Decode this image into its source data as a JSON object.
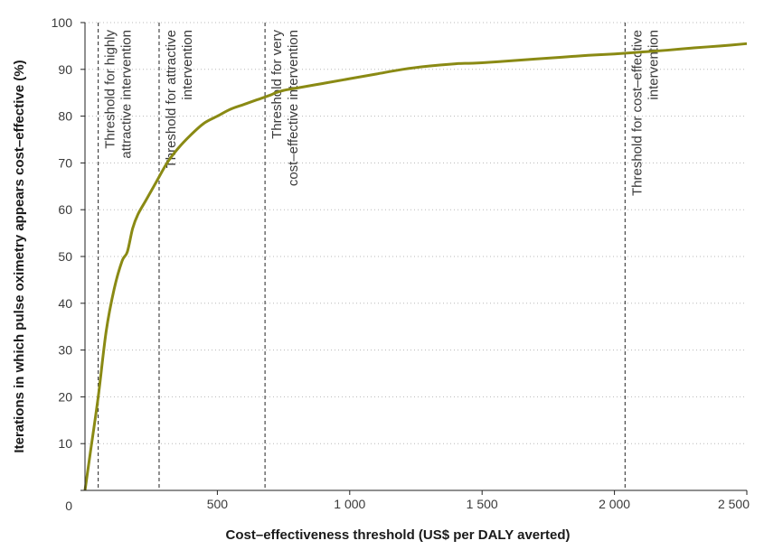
{
  "chart_data": {
    "type": "line",
    "title": "",
    "xlabel": "Cost–effectiveness threshold (US$ per DALY averted)",
    "ylabel": "Iterations in which pulse oximetry appears cost–effective (%)",
    "xlim": [
      0,
      2500
    ],
    "ylim": [
      0,
      100
    ],
    "x_ticks": [
      500,
      1000,
      1500,
      2000,
      2500
    ],
    "x_tick_labels": [
      "500",
      "1 000",
      "1 500",
      "2 000",
      "2 500"
    ],
    "y_ticks": [
      0,
      10,
      20,
      30,
      40,
      50,
      60,
      70,
      80,
      90,
      100
    ],
    "y_tick_labels": [
      "0",
      "10",
      "20",
      "30",
      "40",
      "50",
      "60",
      "70",
      "80",
      "90",
      "100"
    ],
    "grid": "horizontal dotted",
    "line_color": "#8a8a14",
    "series": [
      {
        "x": [
          0,
          20,
          50,
          80,
          110,
          140,
          160,
          180,
          200,
          230,
          270,
          310,
          350,
          400,
          450,
          500,
          550,
          600,
          650,
          700,
          720,
          750,
          800,
          900,
          1000,
          1100,
          1200,
          1300,
          1400,
          1450,
          1500,
          1600,
          1700,
          1800,
          1900,
          2000,
          2100,
          2200,
          2300,
          2400,
          2500
        ],
        "y": [
          0,
          8,
          20,
          34,
          43,
          49,
          51,
          56,
          59,
          62,
          66,
          70,
          73,
          76,
          78.5,
          80,
          81.5,
          82.5,
          83.5,
          84.5,
          85,
          85.5,
          86,
          87,
          88,
          89,
          90,
          90.7,
          91.2,
          91.3,
          91.4,
          91.8,
          92.2,
          92.6,
          93,
          93.3,
          93.7,
          94.1,
          94.6,
          95,
          95.5
        ]
      }
    ],
    "thresholds": [
      {
        "x": 50,
        "lines": [
          "Threshold for highly",
          "attractive intervention"
        ]
      },
      {
        "x": 280,
        "lines": [
          "Threshold for attractive",
          "intervention"
        ]
      },
      {
        "x": 680,
        "lines": [
          "Threshold for very",
          "cost–effective intervention"
        ]
      },
      {
        "x": 2040,
        "lines": [
          "Threshold for cost–effective",
          "intervention"
        ]
      }
    ]
  }
}
